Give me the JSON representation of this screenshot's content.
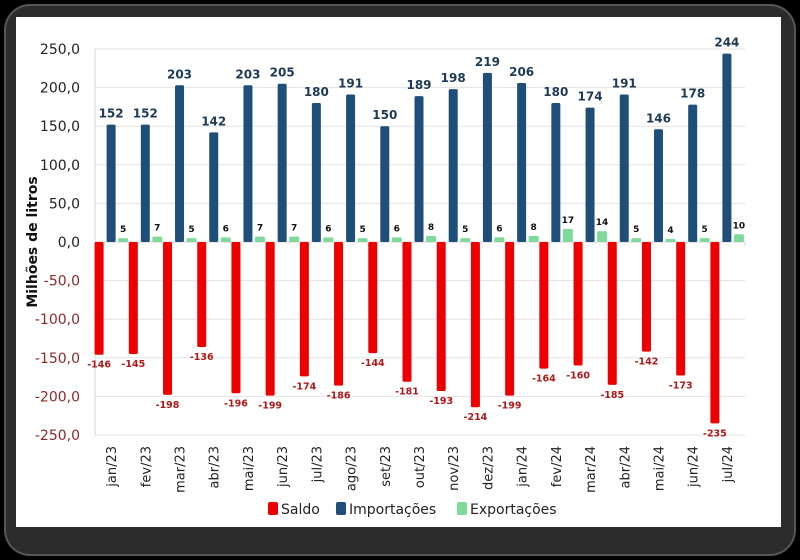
{
  "chart_data": {
    "type": "bar",
    "title": "",
    "xlabel": "",
    "ylabel": "Milhões de litros",
    "ylim": [
      -250,
      250
    ],
    "yticks": [
      250,
      200,
      150,
      100,
      50,
      0,
      -50,
      -100,
      -150,
      -200,
      -250
    ],
    "ytick_labels": [
      "250,0",
      "200,0",
      "150,0",
      "100,0",
      "50,0",
      "0,0",
      "-50,0",
      "-100,0",
      "-150,0",
      "-200,0",
      "-250,0"
    ],
    "grid": true,
    "legend": "bottom",
    "categories": [
      "jan/23",
      "fev/23",
      "mar/23",
      "abr/23",
      "mai/23",
      "jun/23",
      "jul/23",
      "ago/23",
      "set/23",
      "out/23",
      "nov/23",
      "dez/23",
      "jan/24",
      "fev/24",
      "mar/24",
      "abr/24",
      "mai/24",
      "jun/24",
      "jul/24"
    ],
    "series": [
      {
        "name": "Saldo",
        "color": "#ee0000",
        "values": [
          -146,
          -145,
          -198,
          -136,
          -196,
          -199,
          -174,
          -186,
          -144,
          -181,
          -193,
          -214,
          -199,
          -164,
          -160,
          -185,
          -142,
          -173,
          -235
        ]
      },
      {
        "name": "Importações",
        "color": "#1f4e79",
        "values": [
          152,
          152,
          203,
          142,
          203,
          205,
          180,
          191,
          150,
          189,
          198,
          219,
          206,
          180,
          174,
          191,
          146,
          178,
          244
        ]
      },
      {
        "name": "Exportações",
        "color": "#7ed99a",
        "values": [
          5,
          7,
          5,
          6,
          7,
          7,
          6,
          5,
          6,
          8,
          5,
          6,
          8,
          17,
          14,
          5,
          4,
          5,
          10
        ]
      }
    ]
  }
}
